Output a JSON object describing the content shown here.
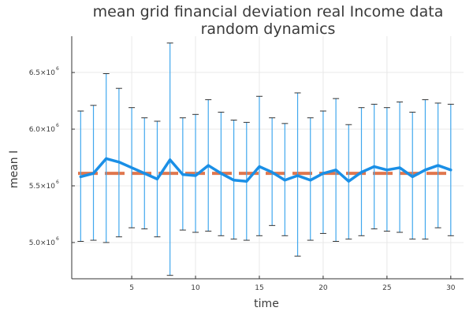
{
  "chart_data": {
    "type": "line",
    "title_line1": "mean grid financial deviation real Income data",
    "title_line2": "random dynamics",
    "xlabel": "time",
    "ylabel": "mean I",
    "xlim": [
      0.3,
      31
    ],
    "ylim": [
      4680000,
      6820000
    ],
    "x_ticks": [
      5,
      10,
      15,
      20,
      25,
      30
    ],
    "x_tick_labels": [
      "5",
      "10",
      "15",
      "20",
      "25",
      "30"
    ],
    "y_ticks": [
      5000000,
      5500000,
      6000000,
      6500000
    ],
    "y_tick_labels": [
      {
        "mantissa": "5.0×10",
        "exp": "6"
      },
      {
        "mantissa": "5.5×10",
        "exp": "6"
      },
      {
        "mantissa": "6.0×10",
        "exp": "6"
      },
      {
        "mantissa": "6.5×10",
        "exp": "6"
      }
    ],
    "grid": true,
    "colors": {
      "errorbar": "#41a8ee",
      "mean": "#1a8fe6",
      "reference": "#e0774e",
      "cap": "#333333"
    },
    "series": [
      {
        "x": [
          1,
          2,
          3,
          4,
          5,
          6,
          7,
          8,
          9,
          10,
          11,
          12,
          13,
          14,
          15,
          16,
          17,
          18,
          19,
          20,
          21,
          22,
          23,
          24,
          25,
          26,
          27,
          28,
          29,
          30
        ],
        "values": [
          5580000,
          5610000,
          5740000,
          5710000,
          5660000,
          5610000,
          5560000,
          5730000,
          5600000,
          5590000,
          5680000,
          5610000,
          5550000,
          5540000,
          5670000,
          5620000,
          5550000,
          5590000,
          5550000,
          5610000,
          5640000,
          5540000,
          5620000,
          5670000,
          5640000,
          5660000,
          5580000,
          5640000,
          5680000,
          5640000
        ],
        "err_high": [
          6160000,
          6210000,
          6490000,
          6360000,
          6190000,
          6100000,
          6070000,
          6760000,
          6100000,
          6130000,
          6260000,
          6150000,
          6080000,
          6060000,
          6290000,
          6100000,
          6050000,
          6320000,
          6100000,
          6160000,
          6270000,
          6040000,
          6190000,
          6220000,
          6190000,
          6240000,
          6150000,
          6260000,
          6230000,
          6220000
        ],
        "err_low": [
          5010000,
          5020000,
          5000000,
          5050000,
          5130000,
          5120000,
          5050000,
          4710000,
          5110000,
          5090000,
          5100000,
          5060000,
          5030000,
          5020000,
          5060000,
          5150000,
          5060000,
          4880000,
          5020000,
          5080000,
          5010000,
          5030000,
          5060000,
          5120000,
          5100000,
          5090000,
          5030000,
          5030000,
          5130000,
          5060000
        ]
      }
    ],
    "reference_value": 5610000
  }
}
